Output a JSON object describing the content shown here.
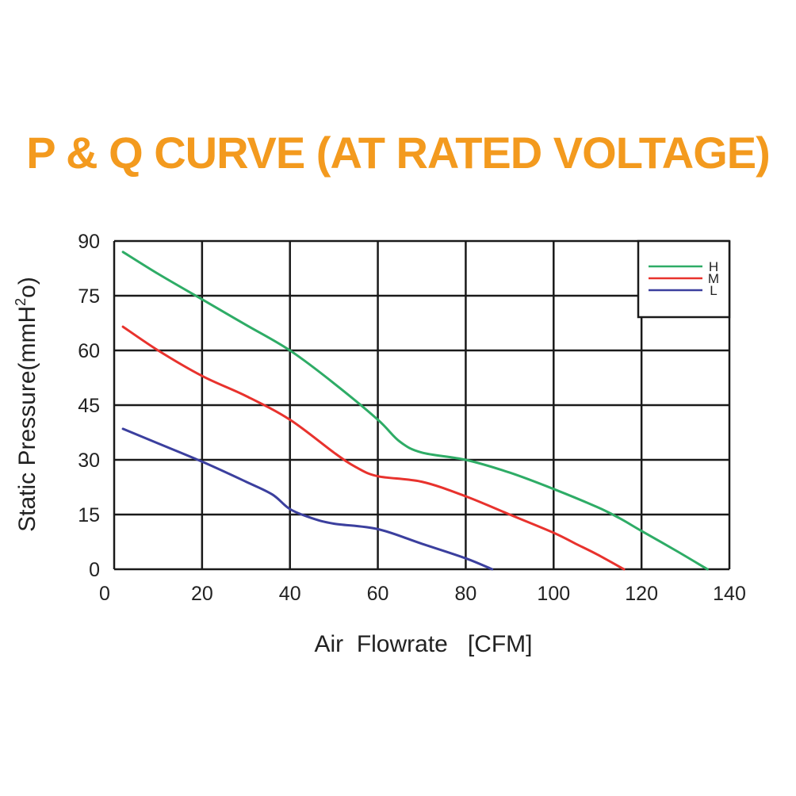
{
  "chart_data": {
    "type": "line",
    "title": "P & Q CURVE (AT RATED VOLTAGE)",
    "xlabel": "Air  Flowrate   [CFM]",
    "ylabel_main": "Static Pressure(mmH",
    "ylabel_sup": "2",
    "ylabel_end": "o)",
    "xlim": [
      0,
      140
    ],
    "ylim": [
      0,
      90
    ],
    "xticks": [
      0,
      20,
      40,
      60,
      80,
      100,
      120,
      140
    ],
    "yticks": [
      0,
      15,
      30,
      45,
      60,
      75,
      90
    ],
    "xtick_labels": [
      "0",
      "20",
      "40",
      "60",
      "80",
      "100",
      "120",
      "140"
    ],
    "ytick_labels": [
      "0",
      "15",
      "30",
      "45",
      "60",
      "75",
      "90"
    ],
    "grid": true,
    "legend_position": "top-right",
    "colors": {
      "title": "#f39a1e",
      "axes": "#1a1a1a",
      "text": "#222222"
    },
    "series": [
      {
        "name": "H",
        "color": "#2eac66",
        "x": [
          2,
          10,
          20,
          30,
          40,
          50,
          60,
          65,
          70,
          80,
          90,
          100,
          110,
          115,
          120,
          128,
          135
        ],
        "y": [
          87,
          81,
          74,
          67,
          60,
          51,
          41,
          35,
          32,
          30,
          26.5,
          22,
          17,
          14,
          10.5,
          5,
          0
        ]
      },
      {
        "name": "M",
        "color": "#e8322d",
        "x": [
          2,
          10,
          20,
          30,
          40,
          50,
          55,
          60,
          70,
          80,
          90,
          100,
          105,
          110,
          116
        ],
        "y": [
          66.5,
          60,
          53,
          47.5,
          41,
          32,
          28,
          25.5,
          24,
          20,
          15,
          10,
          7,
          4,
          0
        ]
      },
      {
        "name": "L",
        "color": "#3b3f9e",
        "x": [
          2,
          10,
          20,
          30,
          36,
          40,
          45,
          50,
          60,
          70,
          80,
          86
        ],
        "y": [
          38.5,
          34.5,
          29.5,
          24,
          20.5,
          16.5,
          14,
          12.5,
          11,
          7,
          3,
          0
        ]
      }
    ]
  }
}
